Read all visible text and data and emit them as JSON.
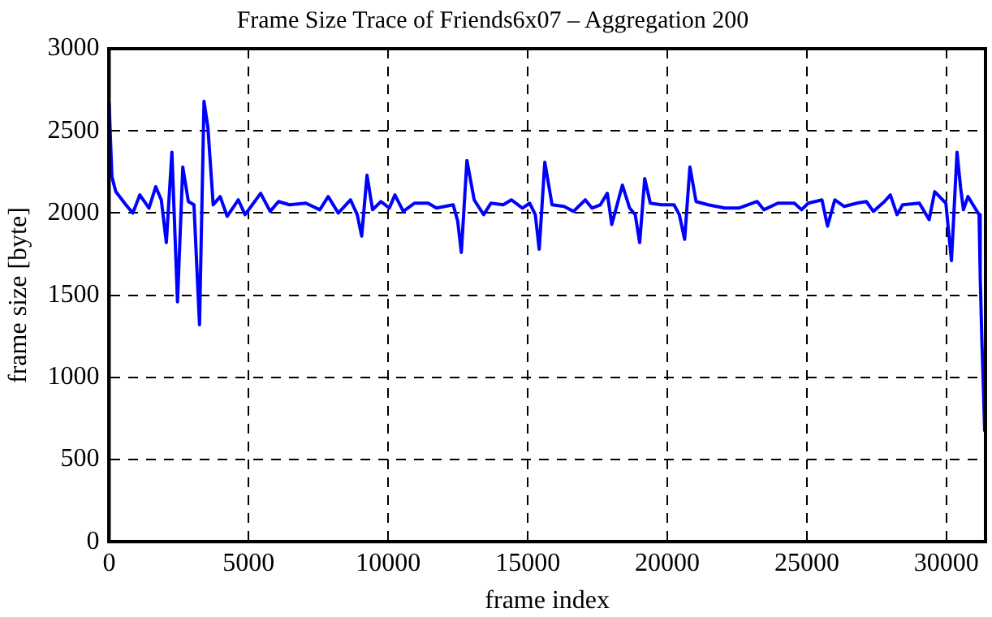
{
  "chart_data": {
    "type": "line",
    "title": "Frame Size Trace of Friends6x07 – Aggregation 200",
    "xlabel": "frame index",
    "ylabel": "frame size [byte]",
    "x": [
      0,
      100,
      240,
      600,
      850,
      1100,
      1430,
      1670,
      1870,
      2050,
      2250,
      2450,
      2640,
      2840,
      3040,
      3240,
      3400,
      3540,
      3730,
      3980,
      4230,
      4630,
      4870,
      5430,
      5770,
      6070,
      6460,
      7050,
      7550,
      7850,
      8210,
      8650,
      8890,
      9050,
      9240,
      9440,
      9740,
      10040,
      10240,
      10540,
      10940,
      11430,
      11730,
      12330,
      12490,
      12620,
      12820,
      13080,
      13420,
      13680,
      14120,
      14410,
      14810,
      15070,
      15270,
      15410,
      15610,
      15870,
      16300,
      16640,
      17060,
      17300,
      17600,
      17850,
      18010,
      18390,
      18650,
      18850,
      19010,
      19190,
      19390,
      19790,
      20240,
      20430,
      20620,
      20810,
      21030,
      21460,
      22060,
      22560,
      23220,
      23460,
      23960,
      24550,
      24810,
      25050,
      25540,
      25740,
      26000,
      26340,
      26790,
      27130,
      27380,
      27780,
      27990,
      28230,
      28430,
      29030,
      29380,
      29580,
      29980,
      30060,
      30180,
      30380,
      30510,
      30610,
      30770,
      31170,
      31210,
      31270,
      31310,
      31370
    ],
    "series": [
      {
        "color": "#0000ff",
        "values": [
          2670,
          2220,
          2130,
          2050,
          2000,
          2110,
          2030,
          2160,
          2080,
          1820,
          2370,
          1460,
          2280,
          2070,
          2050,
          1320,
          2680,
          2520,
          2050,
          2100,
          1980,
          2080,
          1990,
          2120,
          2010,
          2070,
          2050,
          2060,
          2020,
          2100,
          2000,
          2080,
          1990,
          1860,
          2230,
          2020,
          2070,
          2030,
          2110,
          2010,
          2060,
          2060,
          2030,
          2050,
          1950,
          1760,
          2320,
          2080,
          1990,
          2060,
          2050,
          2080,
          2030,
          2060,
          1990,
          1780,
          2310,
          2050,
          2040,
          2010,
          2080,
          2030,
          2050,
          2120,
          1930,
          2170,
          2030,
          1990,
          1820,
          2210,
          2060,
          2050,
          2050,
          1990,
          1840,
          2280,
          2070,
          2050,
          2030,
          2030,
          2070,
          2020,
          2060,
          2060,
          2020,
          2060,
          2080,
          1920,
          2080,
          2040,
          2060,
          2070,
          2010,
          2070,
          2110,
          1990,
          2050,
          2060,
          1960,
          2130,
          2060,
          1920,
          1710,
          2370,
          2150,
          2020,
          2100,
          1990,
          1620,
          1220,
          1020,
          670
        ]
      }
    ],
    "xlim": [
      0,
      31400
    ],
    "xticks": [
      0,
      5000,
      10000,
      15000,
      20000,
      25000,
      30000
    ],
    "ylim": [
      0,
      3000
    ],
    "yticks": [
      0,
      500,
      1000,
      1500,
      2000,
      2500,
      3000
    ],
    "grid": true,
    "legend": false,
    "marker": "none",
    "line_style": "solid"
  }
}
